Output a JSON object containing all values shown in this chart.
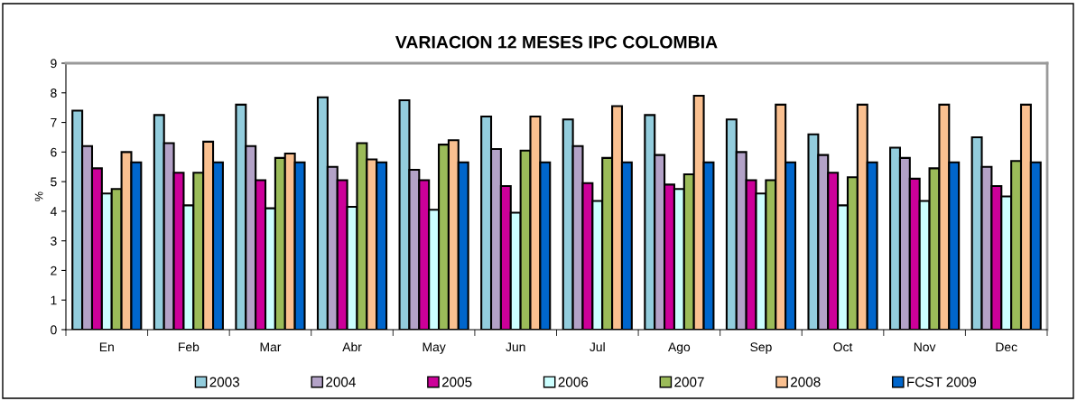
{
  "chart_data": {
    "type": "bar",
    "title": "VARIACION 12 MESES IPC COLOMBIA",
    "ylabel": "%",
    "categories": [
      "En",
      "Feb",
      "Mar",
      "Abr",
      "May",
      "Jun",
      "Jul",
      "Ago",
      "Sep",
      "Oct",
      "Nov",
      "Dec"
    ],
    "ylim": [
      0,
      9
    ],
    "yticks": [
      0,
      1,
      2,
      3,
      4,
      5,
      6,
      7,
      8,
      9
    ],
    "grid": false,
    "legend": "bottom",
    "series": [
      {
        "name": "2003",
        "color": "#93cddd",
        "values": [
          7.4,
          7.25,
          7.6,
          7.85,
          7.75,
          7.2,
          7.1,
          7.25,
          7.1,
          6.6,
          6.15,
          6.5
        ]
      },
      {
        "name": "2004",
        "color": "#b3a2c7",
        "values": [
          6.2,
          6.3,
          6.2,
          5.5,
          5.4,
          6.1,
          6.2,
          5.9,
          6.0,
          5.9,
          5.8,
          5.5
        ]
      },
      {
        "name": "2005",
        "color": "#cc0099",
        "values": [
          5.45,
          5.3,
          5.05,
          5.05,
          5.05,
          4.85,
          4.95,
          4.9,
          5.05,
          5.3,
          5.1,
          4.85
        ]
      },
      {
        "name": "2006",
        "color": "#ccffff",
        "values": [
          4.6,
          4.2,
          4.1,
          4.15,
          4.05,
          3.95,
          4.35,
          4.75,
          4.6,
          4.2,
          4.35,
          4.5
        ]
      },
      {
        "name": "2007",
        "color": "#9bbb59",
        "values": [
          4.75,
          5.3,
          5.8,
          6.3,
          6.25,
          6.05,
          5.8,
          5.25,
          5.05,
          5.15,
          5.45,
          5.7
        ]
      },
      {
        "name": "2008",
        "color": "#fac090",
        "values": [
          6.0,
          6.35,
          5.95,
          5.75,
          6.4,
          7.2,
          7.55,
          7.9,
          7.6,
          7.6,
          7.6,
          7.6
        ]
      },
      {
        "name": "FCST 2009",
        "color": "#0066cc",
        "values": [
          5.65,
          5.65,
          5.65,
          5.65,
          5.65,
          5.65,
          5.65,
          5.65,
          5.65,
          5.65,
          5.65,
          5.65
        ]
      }
    ]
  }
}
